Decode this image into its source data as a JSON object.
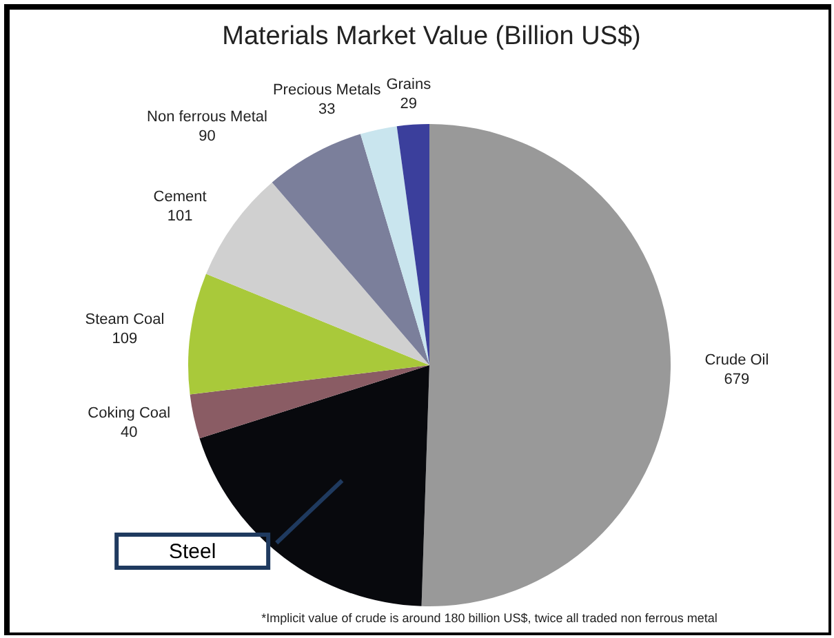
{
  "chart_data": {
    "type": "pie",
    "title": "Materials Market Value (Billion US$)",
    "categories": [
      "Crude Oil",
      "Steel",
      "Coking Coal",
      "Steam Coal",
      "Cement",
      "Non ferrous Metal",
      "Precious Metals",
      "Grains"
    ],
    "values": [
      679,
      263,
      40,
      109,
      101,
      90,
      33,
      29
    ],
    "value_labels": [
      "679",
      null,
      "40",
      "109",
      "101",
      "90",
      "33",
      "29"
    ],
    "colors": [
      "#999999",
      "#08090d",
      "#8a5c64",
      "#a9c93a",
      "#d0d0d0",
      "#7b7f9b",
      "#c9e5ee",
      "#3b3f9c"
    ],
    "annotations": [
      "*Implicit value of crude is around 180 billion US$, twice all traded non ferrous metal"
    ],
    "legend": false
  }
}
